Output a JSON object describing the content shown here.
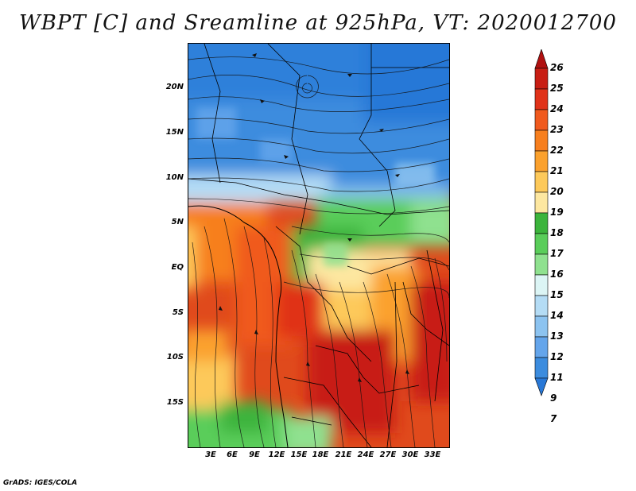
{
  "title": "WBPT [C] and Sreamline at 925hPa, VT: 2020012700",
  "footer": "GrADS: IGES/COLA",
  "lat_ticks": [
    "20N",
    "15N",
    "10N",
    "5N",
    "EQ",
    "5S",
    "10S",
    "15S"
  ],
  "lon_ticks": [
    "3E",
    "6E",
    "9E",
    "12E",
    "15E",
    "18E",
    "21E",
    "24E",
    "27E",
    "30E",
    "33E"
  ],
  "colorbar": {
    "labels": [
      "26",
      "25",
      "24",
      "23",
      "22",
      "21",
      "20",
      "19",
      "18",
      "17",
      "16",
      "15",
      "14",
      "13",
      "12",
      "11",
      "9",
      "7"
    ],
    "colors": [
      "#b01010",
      "#c81e14",
      "#e03219",
      "#f05a1e",
      "#f77f1e",
      "#fba12d",
      "#fdc95a",
      "#fde7a0",
      "#3cb43c",
      "#5acd5a",
      "#8fe18f",
      "#dcf5f5",
      "#b4dcf5",
      "#8cc3f0",
      "#64a5eb",
      "#3c8cde",
      "#2878d7"
    ],
    "min_label": "7",
    "max_label": "26"
  }
}
